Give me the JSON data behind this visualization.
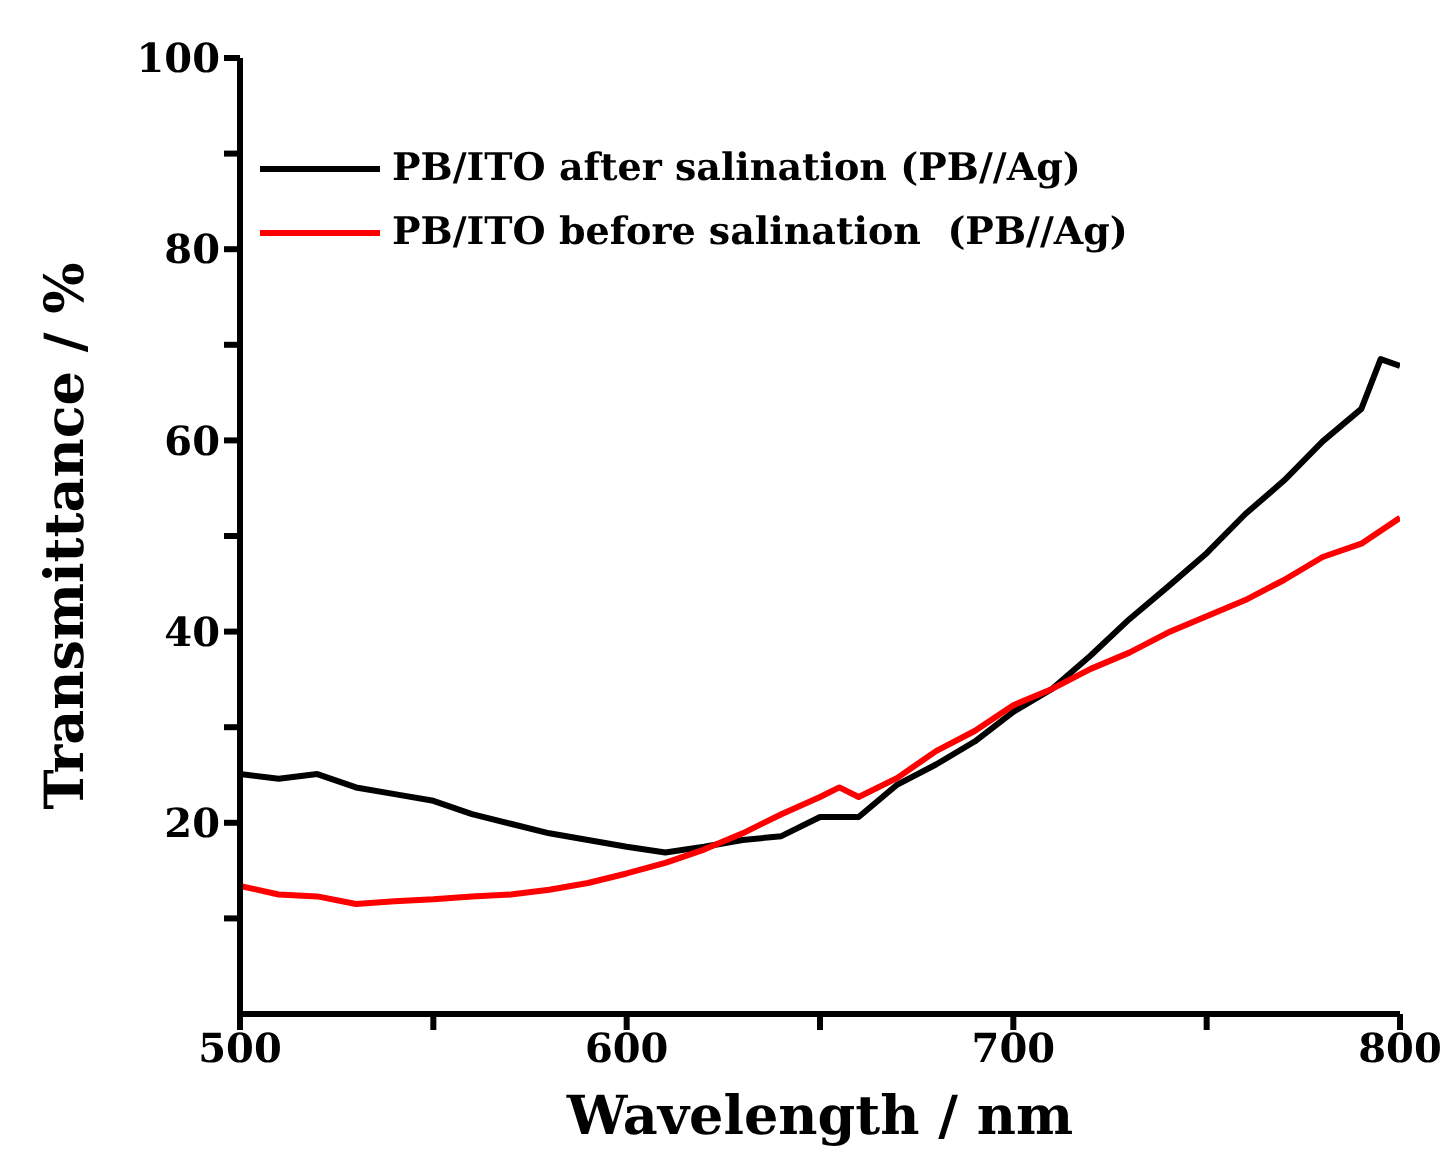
{
  "chart_data": {
    "type": "line",
    "xlabel": "Wavelength / nm",
    "ylabel": "Transmittance / %",
    "xlim": [
      500,
      800
    ],
    "xticks": [
      500,
      {
        "value": 550,
        "label": null
      },
      600,
      {
        "value": 650,
        "label": null
      },
      700,
      {
        "value": 750,
        "label": null
      },
      800
    ],
    "ylim": [
      0,
      100
    ],
    "yticks": [
      {
        "value": 10,
        "label": null
      },
      20,
      {
        "value": 30,
        "label": null
      },
      40,
      {
        "value": 50,
        "label": null
      },
      60,
      {
        "value": 70,
        "label": null
      },
      80,
      {
        "value": 90,
        "label": null
      },
      100
    ],
    "legend": "top left",
    "grid": false,
    "marker": "none",
    "line_style": "solid",
    "series": [
      {
        "name": "PB/ITO after salination (PB//Ag)",
        "color": "#000000",
        "x": [
          500,
          510,
          520,
          530,
          540,
          550,
          560,
          570,
          580,
          590,
          600,
          610,
          620,
          630,
          640,
          650,
          660,
          670,
          680,
          690,
          700,
          710,
          720,
          730,
          740,
          750,
          760,
          770,
          780,
          790,
          795,
          800
        ],
        "values": [
          25.1,
          24.6,
          25.1,
          23.7,
          23.0,
          22.3,
          20.9,
          19.9,
          18.9,
          18.2,
          17.5,
          16.9,
          17.5,
          18.2,
          18.6,
          20.6,
          20.6,
          24.0,
          26.1,
          28.5,
          31.6,
          34.0,
          37.5,
          41.3,
          44.7,
          48.2,
          52.3,
          55.8,
          59.9,
          63.3,
          68.5,
          67.8
        ]
      },
      {
        "name": "PB/ITO before salination  (PB//Ag)",
        "color": "#ff0000",
        "x": [
          500,
          510,
          520,
          530,
          540,
          550,
          560,
          570,
          580,
          590,
          600,
          610,
          620,
          630,
          640,
          650,
          655,
          660,
          670,
          680,
          690,
          700,
          710,
          720,
          730,
          740,
          750,
          760,
          770,
          780,
          790,
          800
        ],
        "values": [
          13.4,
          12.5,
          12.3,
          11.5,
          11.8,
          12.0,
          12.3,
          12.5,
          13.0,
          13.7,
          14.7,
          15.8,
          17.2,
          18.9,
          20.9,
          22.7,
          23.7,
          22.7,
          24.7,
          27.5,
          29.6,
          32.3,
          34.0,
          36.1,
          37.8,
          39.9,
          41.6,
          43.3,
          45.4,
          47.8,
          49.2,
          51.9
        ]
      }
    ]
  }
}
